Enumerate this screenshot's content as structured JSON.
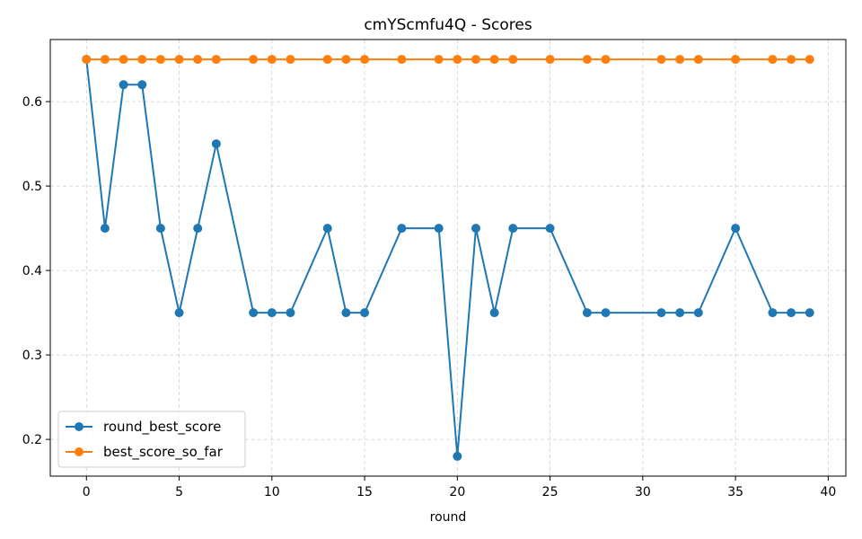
{
  "chart_data": {
    "type": "line",
    "title": "cmYScmfu4Q - Scores",
    "xlabel": "round",
    "ylabel": "",
    "xlim": [
      -1.95,
      40.95
    ],
    "ylim": [
      0.1565,
      0.6735
    ],
    "xticks": [
      0,
      5,
      10,
      15,
      20,
      25,
      30,
      35,
      40
    ],
    "yticks": [
      0.2,
      0.3,
      0.4,
      0.5,
      0.6
    ],
    "grid": true,
    "legend_position": "lower-left",
    "x": [
      0,
      1,
      2,
      3,
      4,
      5,
      6,
      7,
      9,
      10,
      11,
      13,
      14,
      15,
      17,
      19,
      20,
      21,
      22,
      23,
      25,
      27,
      28,
      31,
      32,
      33,
      35,
      37,
      38,
      39
    ],
    "series": [
      {
        "name": "round_best_score",
        "color": "#1f77b4",
        "values": [
          0.65,
          0.45,
          0.62,
          0.62,
          0.45,
          0.35,
          0.45,
          0.55,
          0.35,
          0.35,
          0.35,
          0.45,
          0.35,
          0.35,
          0.45,
          0.45,
          0.18,
          0.45,
          0.35,
          0.45,
          0.45,
          0.35,
          0.35,
          0.35,
          0.35,
          0.35,
          0.45,
          0.35,
          0.35,
          0.35
        ]
      },
      {
        "name": "best_score_so_far",
        "color": "#ff7f0e",
        "values": [
          0.65,
          0.65,
          0.65,
          0.65,
          0.65,
          0.65,
          0.65,
          0.65,
          0.65,
          0.65,
          0.65,
          0.65,
          0.65,
          0.65,
          0.65,
          0.65,
          0.65,
          0.65,
          0.65,
          0.65,
          0.65,
          0.65,
          0.65,
          0.65,
          0.65,
          0.65,
          0.65,
          0.65,
          0.65,
          0.65
        ]
      }
    ]
  }
}
